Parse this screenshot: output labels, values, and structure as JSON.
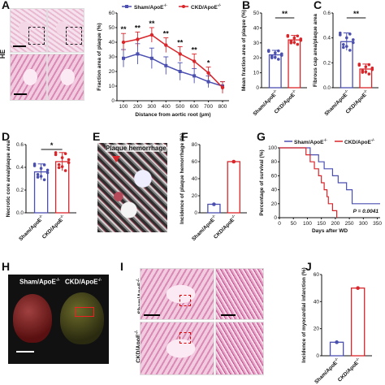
{
  "panels": {
    "A": "A",
    "B": "B",
    "C": "C",
    "D": "D",
    "E": "E",
    "F": "F",
    "G": "G",
    "H": "H",
    "I": "I",
    "J": "J"
  },
  "groups": {
    "sham": "Sham/ApoE",
    "ckd": "CKD/ApoE",
    "sup": "-/-"
  },
  "panel_A": {
    "row_label": "HE",
    "legend": [
      "Sham/ApoE",
      "CKD/ApoE"
    ],
    "ylabel": "Fraction area of plaque (%)",
    "xlabel": "Distance from aortic root (μm)"
  },
  "panel_E": {
    "caption": "Plaque hemorrhage"
  },
  "panel_G": {
    "legend": [
      "Sham/ApoE",
      "CKD/ApoE"
    ],
    "pvalue": "P = 0.0041",
    "ylabel": "Percentage of survival (%)",
    "xlabel": "Days after WD"
  },
  "panel_H": {
    "labels": [
      "Sham/ApoE",
      "CKD/ApoE"
    ]
  },
  "panel_I": {
    "row_labels": [
      "Sham/ApoE",
      "CKD/ApoE"
    ]
  },
  "colors": {
    "sham": "#4a4fb0",
    "ckd": "#d8262b"
  },
  "chart_data": [
    {
      "id": "A",
      "type": "line",
      "x": [
        100,
        200,
        300,
        400,
        500,
        600,
        700,
        800
      ],
      "series": [
        {
          "name": "Sham/ApoE",
          "values": [
            29,
            32,
            29,
            24,
            20,
            17,
            13,
            10
          ],
          "err": [
            6,
            7,
            7,
            6,
            6,
            5,
            4,
            3
          ]
        },
        {
          "name": "CKD/ApoE",
          "values": [
            40,
            42,
            45,
            38,
            32,
            27,
            19,
            9
          ],
          "err": [
            6,
            5,
            5,
            5,
            5,
            5,
            4,
            4
          ]
        }
      ],
      "significance": [
        "**",
        "**",
        "**",
        "**",
        "**",
        "**",
        "*",
        ""
      ],
      "ylabel": "Fraction area of plaque (%)",
      "xlabel": "Distance from aortic root (μm)",
      "yticks": [
        0,
        10,
        20,
        30,
        40,
        50,
        60
      ],
      "ylim": [
        0,
        60
      ]
    },
    {
      "id": "B",
      "type": "bar",
      "categories": [
        "Sham/ApoE",
        "CKD/ApoE"
      ],
      "values": [
        22,
        32
      ],
      "err": [
        3,
        3
      ],
      "significance": "**",
      "ylabel": "Mean fraction area of plaque (%)",
      "yticks": [
        0,
        10,
        20,
        30,
        40,
        50
      ],
      "ylim": [
        0,
        50
      ]
    },
    {
      "id": "C",
      "type": "bar",
      "categories": [
        "Sham/ApoE",
        "CKD/ApoE"
      ],
      "values": [
        0.37,
        0.15
      ],
      "err": [
        0.07,
        0.04
      ],
      "significance": "**",
      "ylabel": "Fibrous cap area/plaque area",
      "yticks": [
        0.0,
        0.2,
        0.4,
        0.6
      ],
      "ylim": [
        0,
        0.6
      ]
    },
    {
      "id": "D",
      "type": "bar",
      "categories": [
        "Sham/ApoE",
        "CKD/ApoE"
      ],
      "values": [
        0.36,
        0.45
      ],
      "err": [
        0.07,
        0.08
      ],
      "significance": "*",
      "ylabel": "Necrotic core area/plaque area",
      "yticks": [
        0.0,
        0.2,
        0.4,
        0.6
      ],
      "ylim": [
        0,
        0.6
      ]
    },
    {
      "id": "F",
      "type": "bar",
      "categories": [
        "Sham/ApoE",
        "CKD/ApoE"
      ],
      "values": [
        10,
        60
      ],
      "ylabel": "Incidence of plaque hemorrhage (%)",
      "yticks": [
        0,
        20,
        40,
        60,
        80
      ],
      "ylim": [
        0,
        80
      ]
    },
    {
      "id": "G",
      "type": "line",
      "series": [
        {
          "name": "Sham/ApoE",
          "steps": [
            [
              0,
              100
            ],
            [
              110,
              100
            ],
            [
              110,
              90
            ],
            [
              140,
              90
            ],
            [
              140,
              80
            ],
            [
              160,
              80
            ],
            [
              160,
              70
            ],
            [
              190,
              70
            ],
            [
              190,
              60
            ],
            [
              210,
              60
            ],
            [
              210,
              50
            ],
            [
              240,
              50
            ],
            [
              240,
              40
            ],
            [
              260,
              40
            ],
            [
              260,
              20
            ],
            [
              360,
              20
            ]
          ]
        },
        {
          "name": "CKD/ApoE",
          "steps": [
            [
              0,
              100
            ],
            [
              95,
              100
            ],
            [
              95,
              90
            ],
            [
              110,
              90
            ],
            [
              110,
              80
            ],
            [
              125,
              80
            ],
            [
              125,
              70
            ],
            [
              140,
              70
            ],
            [
              140,
              60
            ],
            [
              150,
              60
            ],
            [
              150,
              50
            ],
            [
              160,
              50
            ],
            [
              160,
              40
            ],
            [
              170,
              40
            ],
            [
              170,
              30
            ],
            [
              175,
              30
            ],
            [
              175,
              20
            ],
            [
              190,
              20
            ],
            [
              190,
              10
            ],
            [
              205,
              10
            ],
            [
              205,
              0
            ]
          ]
        }
      ],
      "pvalue": "P = 0.0041",
      "ylabel": "Percentage of survival (%)",
      "xlabel": "Days after WD",
      "xticks": [
        0,
        50,
        100,
        150,
        200,
        250,
        300,
        350
      ],
      "yticks": [
        0,
        20,
        40,
        60,
        80,
        100
      ],
      "xlim": [
        0,
        360
      ],
      "ylim": [
        0,
        100
      ]
    },
    {
      "id": "J",
      "type": "bar",
      "categories": [
        "Sham/ApoE",
        "CKD/ApoE"
      ],
      "values": [
        10,
        50
      ],
      "ylabel": "Incidence of myocardial infarction (%)",
      "yticks": [
        0,
        20,
        40,
        60
      ],
      "ylim": [
        0,
        60
      ]
    }
  ]
}
